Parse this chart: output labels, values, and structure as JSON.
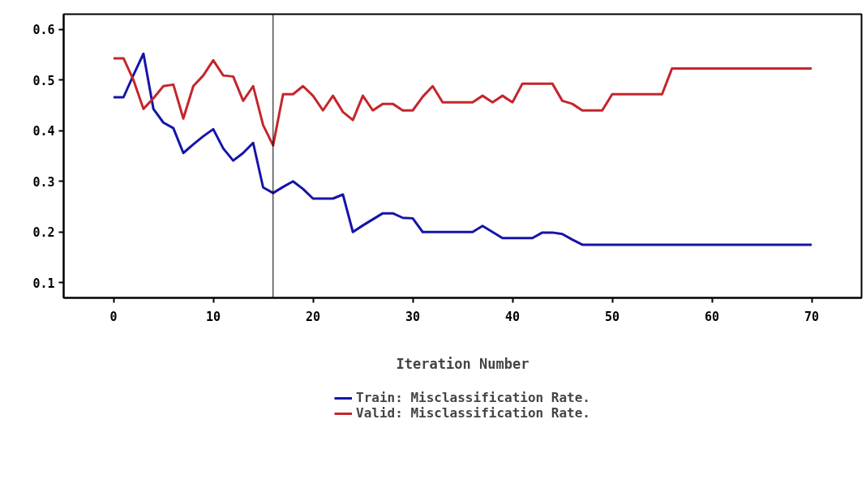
{
  "chart_data": {
    "type": "line",
    "xlabel": "Iteration Number",
    "x": [
      0,
      1,
      2,
      3,
      4,
      5,
      6,
      7,
      8,
      9,
      10,
      11,
      12,
      13,
      14,
      15,
      16,
      17,
      18,
      19,
      20,
      21,
      22,
      23,
      24,
      25,
      26,
      27,
      28,
      29,
      30,
      31,
      32,
      33,
      34,
      35,
      36,
      37,
      38,
      39,
      40,
      41,
      42,
      43,
      44,
      45,
      46,
      47,
      48,
      49,
      50,
      51,
      52,
      53,
      54,
      55,
      56,
      57,
      58,
      59,
      60,
      61,
      62,
      63,
      64,
      65,
      66,
      67,
      68,
      69,
      70
    ],
    "series": [
      {
        "name": "Train: Misclassification Rate.",
        "color": "#1414a8",
        "values": [
          0.466,
          0.466,
          0.51,
          0.552,
          0.443,
          0.416,
          0.405,
          0.356,
          0.373,
          0.389,
          0.403,
          0.365,
          0.341,
          0.356,
          0.376,
          0.288,
          0.277,
          0.289,
          0.3,
          0.285,
          0.266,
          0.266,
          0.266,
          0.274,
          0.2,
          0.213,
          0.225,
          0.237,
          0.237,
          0.228,
          0.227,
          0.2,
          0.2,
          0.2,
          0.2,
          0.2,
          0.2,
          0.212,
          0.2,
          0.188,
          0.188,
          0.188,
          0.188,
          0.199,
          0.199,
          0.196,
          0.185,
          0.175,
          0.175,
          0.175,
          0.175,
          0.175,
          0.175,
          0.175,
          0.175,
          0.175,
          0.175,
          0.175,
          0.175,
          0.175,
          0.175,
          0.175,
          0.175,
          0.175,
          0.175,
          0.175,
          0.175,
          0.175,
          0.175,
          0.175,
          0.175
        ]
      },
      {
        "name": "Valid: Misclassification Rate.",
        "color": "#c4262c",
        "values": [
          0.543,
          0.543,
          0.5,
          0.443,
          0.464,
          0.488,
          0.491,
          0.424,
          0.488,
          0.509,
          0.539,
          0.509,
          0.507,
          0.459,
          0.488,
          0.411,
          0.371,
          0.472,
          0.472,
          0.488,
          0.469,
          0.44,
          0.469,
          0.437,
          0.421,
          0.469,
          0.44,
          0.453,
          0.453,
          0.44,
          0.44,
          0.467,
          0.488,
          0.456,
          0.456,
          0.456,
          0.456,
          0.469,
          0.456,
          0.469,
          0.456,
          0.493,
          0.493,
          0.493,
          0.493,
          0.459,
          0.453,
          0.44,
          0.44,
          0.44,
          0.472,
          0.472,
          0.472,
          0.472,
          0.472,
          0.472,
          0.523,
          0.523,
          0.523,
          0.523,
          0.523,
          0.523,
          0.523,
          0.523,
          0.523,
          0.523,
          0.523,
          0.523,
          0.523,
          0.523,
          0.523
        ]
      }
    ],
    "xlim": [
      -5,
      75
    ],
    "ylim": [
      0.07,
      0.63
    ],
    "xticks": [
      0,
      10,
      20,
      30,
      40,
      50,
      60,
      70
    ],
    "yticks": [
      0.1,
      0.2,
      0.3,
      0.4,
      0.5,
      0.6
    ],
    "ref_lines": [
      {
        "axis": "x",
        "value": 16,
        "color": "#000000"
      }
    ],
    "legend": "bottom",
    "grid": false,
    "marker": "none",
    "line_style": "solid"
  }
}
